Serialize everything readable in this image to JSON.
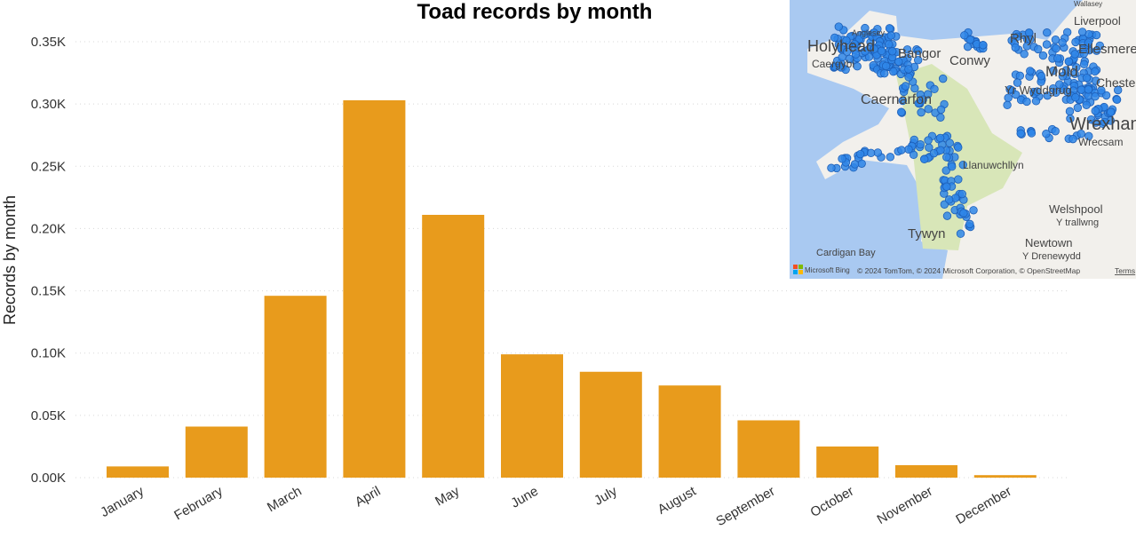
{
  "chart_data": {
    "type": "bar",
    "title": "Toad records by month",
    "xlabel": "",
    "ylabel": "Records by month",
    "categories": [
      "January",
      "February",
      "March",
      "April",
      "May",
      "June",
      "July",
      "August",
      "September",
      "October",
      "November",
      "December"
    ],
    "values": [
      9,
      41,
      146,
      303,
      211,
      99,
      85,
      74,
      46,
      25,
      10,
      2
    ],
    "ylim": [
      0,
      350
    ],
    "yticks": [
      0,
      50,
      100,
      150,
      200,
      250,
      300,
      350
    ],
    "ytick_labels": [
      "0.00K",
      "0.05K",
      "0.10K",
      "0.15K",
      "0.20K",
      "0.25K",
      "0.30K",
      "0.35K"
    ],
    "grid": true,
    "bar_color": "#E89B1C"
  },
  "map": {
    "place_labels": [
      "Wallasey",
      "Liverpool",
      "Holyhead",
      "Caergybi",
      "Bangor",
      "Conwy",
      "Rhyl",
      "Ellesmere",
      "Mold",
      "Yr Wyddgrug",
      "Chester",
      "Caernarfon",
      "Wrexham",
      "Wrecsam",
      "Llanuwchllyn",
      "Welshpool",
      "Y trallwng",
      "Tywyn",
      "Newtown",
      "Y Drenewydd",
      "Cardigan Bay",
      "Anglesey"
    ],
    "attribution": "© 2024 TomTom, © 2024 Microsoft Corporation, © OpenStreetMap",
    "terms_link": "Terms",
    "logo_text": "Microsoft Bing",
    "dot_color": "#2f86e8",
    "sea_color": "#a9c9f1",
    "land_color": "#f2f0ec",
    "park_color": "#d8e6b8"
  }
}
